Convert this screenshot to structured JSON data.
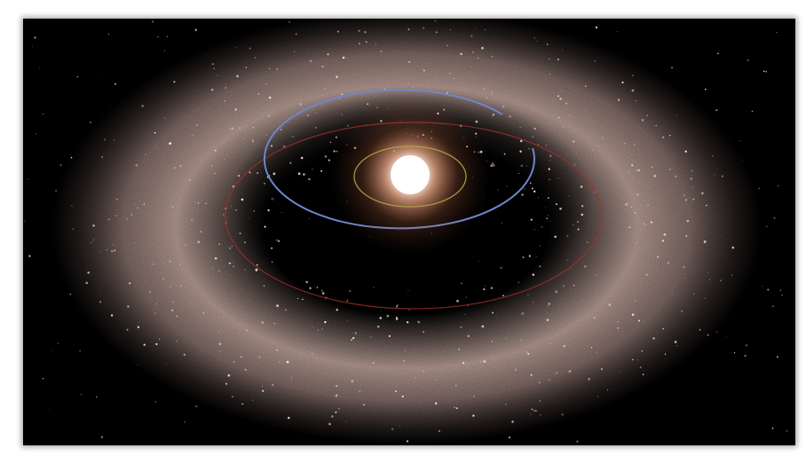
{
  "image": {
    "subject": "debris-disk-illustration",
    "colors": {
      "space": "#000000",
      "dust": "#c9aaa0",
      "star_core": "#ffffff",
      "star_glow": "#f4b08c",
      "inner_orbit": "#b8a24a",
      "middle_orbit": "#6f86c9",
      "outer_orbit": "#a8322a",
      "frame": "#ffffff"
    }
  }
}
